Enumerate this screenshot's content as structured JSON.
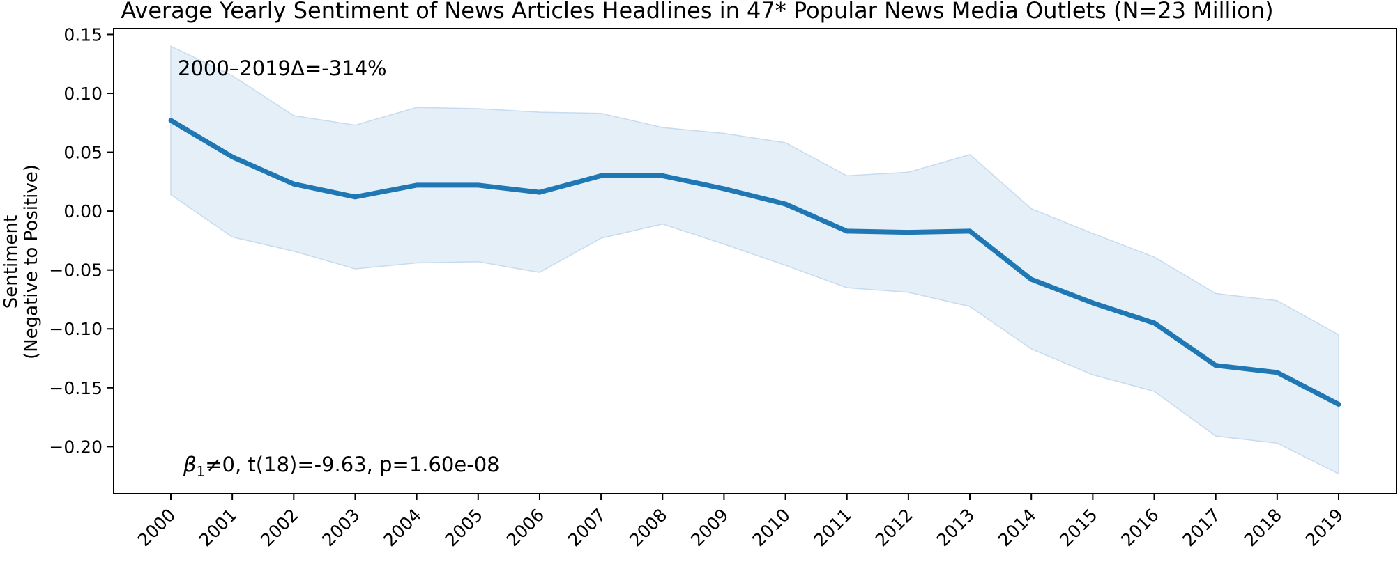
{
  "chart_data": {
    "type": "line",
    "title": "Average Yearly Sentiment of News Articles Headlines in 47* Popular News Media Outlets (N=23 Million)",
    "xlabel": "",
    "ylabel": "Sentiment",
    "ylabel_sub": "(Negative to Positive)",
    "ylim": [
      -0.24,
      0.155
    ],
    "yticks": [
      0.15,
      0.1,
      0.05,
      0.0,
      -0.05,
      -0.1,
      -0.15,
      -0.2
    ],
    "ytick_labels": [
      "0.15",
      "0.10",
      "0.05",
      "0.00",
      "−0.05",
      "−0.10",
      "−0.15",
      "−0.20"
    ],
    "grid": false,
    "line_color": "#1f77b4",
    "band_color": "#c6dbef",
    "x": [
      "2000",
      "2001",
      "2002",
      "2003",
      "2004",
      "2005",
      "2006",
      "2007",
      "2008",
      "2009",
      "2010",
      "2011",
      "2012",
      "2013",
      "2014",
      "2015",
      "2016",
      "2017",
      "2018",
      "2019"
    ],
    "series": [
      {
        "values": [
          0.077,
          0.046,
          0.023,
          0.012,
          0.022,
          0.022,
          0.016,
          0.03,
          0.03,
          0.019,
          0.006,
          -0.017,
          -0.018,
          -0.017,
          -0.058,
          -0.078,
          -0.095,
          -0.131,
          -0.137,
          -0.164
        ],
        "upper": [
          0.14,
          0.115,
          0.081,
          0.073,
          0.088,
          0.087,
          0.084,
          0.083,
          0.071,
          0.066,
          0.058,
          0.03,
          0.033,
          0.048,
          0.002,
          -0.019,
          -0.039,
          -0.07,
          -0.076,
          -0.105
        ],
        "lower": [
          0.014,
          -0.022,
          -0.034,
          -0.049,
          -0.044,
          -0.043,
          -0.052,
          -0.023,
          -0.011,
          -0.028,
          -0.046,
          -0.065,
          -0.069,
          -0.081,
          -0.117,
          -0.139,
          -0.153,
          -0.191,
          -0.197,
          -0.223
        ]
      }
    ],
    "annotations": {
      "delta": "2000–2019Δ=-314%",
      "stat_beta": "β",
      "stat_sub": "1",
      "stat_rest": "≠0, t(18)=-9.63, p=1.60e-08"
    }
  }
}
